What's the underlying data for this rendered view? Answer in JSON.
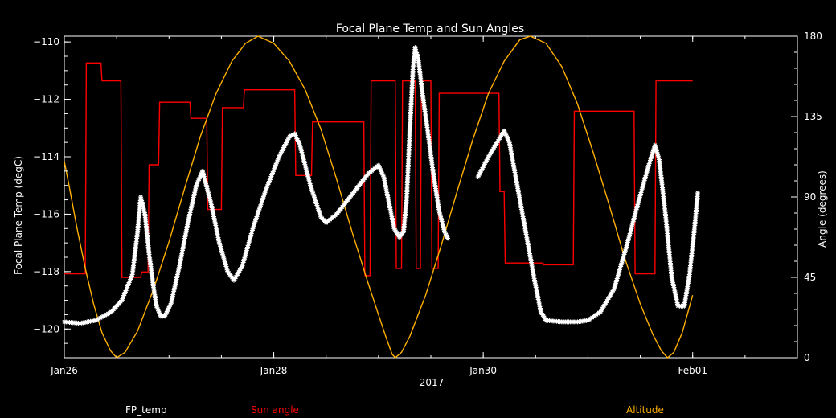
{
  "chart_data": {
    "type": "line",
    "title": "Focal Plane Temp and Sun Angles",
    "xlabel": "2017",
    "ylabel_left": "Focal Plane Temp (degC)",
    "ylabel_right": "Angle (degrees)",
    "x_unit": "days since Jan26 2017 00:00",
    "xlim": [
      0,
      7
    ],
    "x_ticks": [
      {
        "x": 0,
        "label": "Jan26"
      },
      {
        "x": 2,
        "label": "Jan28"
      },
      {
        "x": 4,
        "label": "Jan30"
      },
      {
        "x": 6,
        "label": "Feb01"
      }
    ],
    "ylim_left": [
      -121,
      -109.8
    ],
    "y_ticks_left": [
      -120,
      -118,
      -116,
      -114,
      -112,
      -110
    ],
    "ylim_right": [
      0,
      180
    ],
    "y_ticks_right": [
      0,
      45,
      90,
      135,
      180
    ],
    "grid": false,
    "legend_position": "bottom",
    "series": [
      {
        "name": "FP_temp",
        "axis": "left",
        "color": "#ffffff",
        "marker": "star",
        "segments": [
          [
            [
              0.0,
              -119.75
            ],
            [
              0.15,
              -119.8
            ],
            [
              0.3,
              -119.7
            ],
            [
              0.45,
              -119.4
            ],
            [
              0.55,
              -119.0
            ],
            [
              0.65,
              -118.1
            ],
            [
              0.7,
              -116.6
            ],
            [
              0.73,
              -115.4
            ],
            [
              0.77,
              -116.0
            ],
            [
              0.81,
              -117.4
            ],
            [
              0.85,
              -118.5
            ],
            [
              0.88,
              -119.2
            ],
            [
              0.92,
              -119.55
            ],
            [
              0.96,
              -119.55
            ],
            [
              1.02,
              -119.1
            ],
            [
              1.1,
              -117.8
            ],
            [
              1.18,
              -116.3
            ],
            [
              1.26,
              -115.0
            ],
            [
              1.32,
              -114.5
            ],
            [
              1.4,
              -115.6
            ],
            [
              1.48,
              -117.0
            ],
            [
              1.56,
              -118.0
            ],
            [
              1.62,
              -118.3
            ],
            [
              1.7,
              -117.8
            ],
            [
              1.8,
              -116.5
            ],
            [
              1.92,
              -115.2
            ],
            [
              2.05,
              -114.0
            ],
            [
              2.15,
              -113.3
            ],
            [
              2.2,
              -113.2
            ],
            [
              2.25,
              -113.6
            ],
            [
              2.35,
              -115.0
            ],
            [
              2.45,
              -116.1
            ],
            [
              2.5,
              -116.3
            ],
            [
              2.6,
              -116.0
            ],
            [
              2.75,
              -115.3
            ],
            [
              2.9,
              -114.6
            ],
            [
              3.0,
              -114.3
            ],
            [
              3.05,
              -114.7
            ],
            [
              3.1,
              -115.6
            ],
            [
              3.15,
              -116.5
            ],
            [
              3.2,
              -116.8
            ],
            [
              3.24,
              -116.6
            ],
            [
              3.27,
              -115.4
            ],
            [
              3.3,
              -113.0
            ],
            [
              3.33,
              -110.9
            ],
            [
              3.35,
              -110.2
            ],
            [
              3.38,
              -110.6
            ],
            [
              3.42,
              -111.8
            ],
            [
              3.47,
              -113.1
            ],
            [
              3.52,
              -114.5
            ],
            [
              3.58,
              -115.9
            ],
            [
              3.63,
              -116.6
            ],
            [
              3.67,
              -116.9
            ]
          ],
          [
            [
              3.95,
              -114.7
            ],
            [
              4.05,
              -114.0
            ],
            [
              4.15,
              -113.4
            ],
            [
              4.2,
              -113.1
            ],
            [
              4.25,
              -113.5
            ],
            [
              4.33,
              -115.1
            ],
            [
              4.41,
              -116.7
            ],
            [
              4.49,
              -118.3
            ],
            [
              4.55,
              -119.4
            ],
            [
              4.6,
              -119.7
            ],
            [
              4.75,
              -119.75
            ],
            [
              4.9,
              -119.75
            ],
            [
              5.0,
              -119.7
            ],
            [
              5.12,
              -119.4
            ],
            [
              5.25,
              -118.6
            ],
            [
              5.37,
              -117.1
            ],
            [
              5.48,
              -115.6
            ],
            [
              5.58,
              -114.3
            ],
            [
              5.64,
              -113.6
            ],
            [
              5.68,
              -114.1
            ],
            [
              5.74,
              -116.0
            ],
            [
              5.8,
              -118.2
            ],
            [
              5.86,
              -119.2
            ],
            [
              5.92,
              -119.2
            ],
            [
              5.97,
              -118.1
            ],
            [
              6.02,
              -116.4
            ],
            [
              6.05,
              -115.2
            ]
          ]
        ]
      },
      {
        "name": "Sun angle",
        "axis": "right",
        "color": "#ff0000",
        "points": [
          [
            0.0,
            47
          ],
          [
            0.2,
            47
          ],
          [
            0.21,
            165
          ],
          [
            0.35,
            165
          ],
          [
            0.36,
            155
          ],
          [
            0.54,
            155
          ],
          [
            0.55,
            45
          ],
          [
            0.73,
            45
          ],
          [
            0.74,
            48
          ],
          [
            0.8,
            48
          ],
          [
            0.81,
            108
          ],
          [
            0.9,
            108
          ],
          [
            0.91,
            143
          ],
          [
            1.2,
            143
          ],
          [
            1.21,
            134
          ],
          [
            1.36,
            134
          ],
          [
            1.37,
            83
          ],
          [
            1.5,
            83
          ],
          [
            1.51,
            140
          ],
          [
            1.71,
            140
          ],
          [
            1.72,
            150
          ],
          [
            1.86,
            150
          ],
          [
            1.87,
            150
          ],
          [
            2.2,
            150
          ],
          [
            2.21,
            102
          ],
          [
            2.36,
            102
          ],
          [
            2.37,
            132
          ],
          [
            2.86,
            132
          ],
          [
            2.87,
            46
          ],
          [
            2.92,
            46
          ],
          [
            2.93,
            155
          ],
          [
            3.16,
            155
          ],
          [
            3.17,
            50
          ],
          [
            3.22,
            50
          ],
          [
            3.23,
            155
          ],
          [
            3.35,
            155
          ],
          [
            3.36,
            50
          ],
          [
            3.4,
            50
          ],
          [
            3.41,
            155
          ],
          [
            3.5,
            155
          ],
          [
            3.51,
            50
          ],
          [
            3.57,
            50
          ],
          [
            3.58,
            148
          ],
          [
            4.15,
            148
          ],
          [
            4.16,
            93
          ],
          [
            4.2,
            93
          ],
          [
            4.21,
            53
          ],
          [
            4.57,
            53
          ],
          [
            4.58,
            52
          ],
          [
            4.72,
            52
          ],
          [
            4.73,
            52
          ],
          [
            4.86,
            52
          ],
          [
            4.87,
            138
          ],
          [
            5.44,
            138
          ],
          [
            5.45,
            47
          ],
          [
            5.64,
            47
          ],
          [
            5.65,
            155
          ],
          [
            5.81,
            155
          ],
          [
            6.0,
            155
          ]
        ]
      },
      {
        "name": "Altitude",
        "axis": "right",
        "color": "#ffb000",
        "points": [
          [
            0.0,
            110
          ],
          [
            0.05,
            95
          ],
          [
            0.12,
            73
          ],
          [
            0.2,
            50
          ],
          [
            0.28,
            30
          ],
          [
            0.36,
            14
          ],
          [
            0.44,
            4
          ],
          [
            0.5,
            0
          ],
          [
            0.58,
            3
          ],
          [
            0.7,
            15
          ],
          [
            0.85,
            38
          ],
          [
            1.0,
            65
          ],
          [
            1.15,
            95
          ],
          [
            1.3,
            124
          ],
          [
            1.45,
            148
          ],
          [
            1.6,
            166
          ],
          [
            1.73,
            176
          ],
          [
            1.85,
            180
          ],
          [
            2.0,
            176
          ],
          [
            2.15,
            166
          ],
          [
            2.3,
            150
          ],
          [
            2.45,
            128
          ],
          [
            2.6,
            100
          ],
          [
            2.75,
            70
          ],
          [
            2.9,
            42
          ],
          [
            3.0,
            24
          ],
          [
            3.08,
            10
          ],
          [
            3.13,
            2
          ],
          [
            3.16,
            0
          ],
          [
            3.22,
            3
          ],
          [
            3.3,
            12
          ],
          [
            3.45,
            35
          ],
          [
            3.6,
            63
          ],
          [
            3.75,
            93
          ],
          [
            3.9,
            122
          ],
          [
            4.05,
            148
          ],
          [
            4.2,
            166
          ],
          [
            4.35,
            178
          ],
          [
            4.45,
            180
          ],
          [
            4.6,
            176
          ],
          [
            4.75,
            163
          ],
          [
            4.9,
            142
          ],
          [
            5.05,
            115
          ],
          [
            5.2,
            86
          ],
          [
            5.35,
            56
          ],
          [
            5.5,
            30
          ],
          [
            5.62,
            13
          ],
          [
            5.7,
            4
          ],
          [
            5.76,
            0
          ],
          [
            5.82,
            3
          ],
          [
            5.9,
            14
          ],
          [
            6.0,
            35
          ]
        ]
      }
    ]
  },
  "legend": {
    "fp_temp": "FP_temp",
    "sun_angle": "Sun angle",
    "altitude": "Altitude",
    "colors": {
      "fp_temp": "#ffffff",
      "sun_angle": "#ff0000",
      "altitude": "#ffb000"
    }
  }
}
